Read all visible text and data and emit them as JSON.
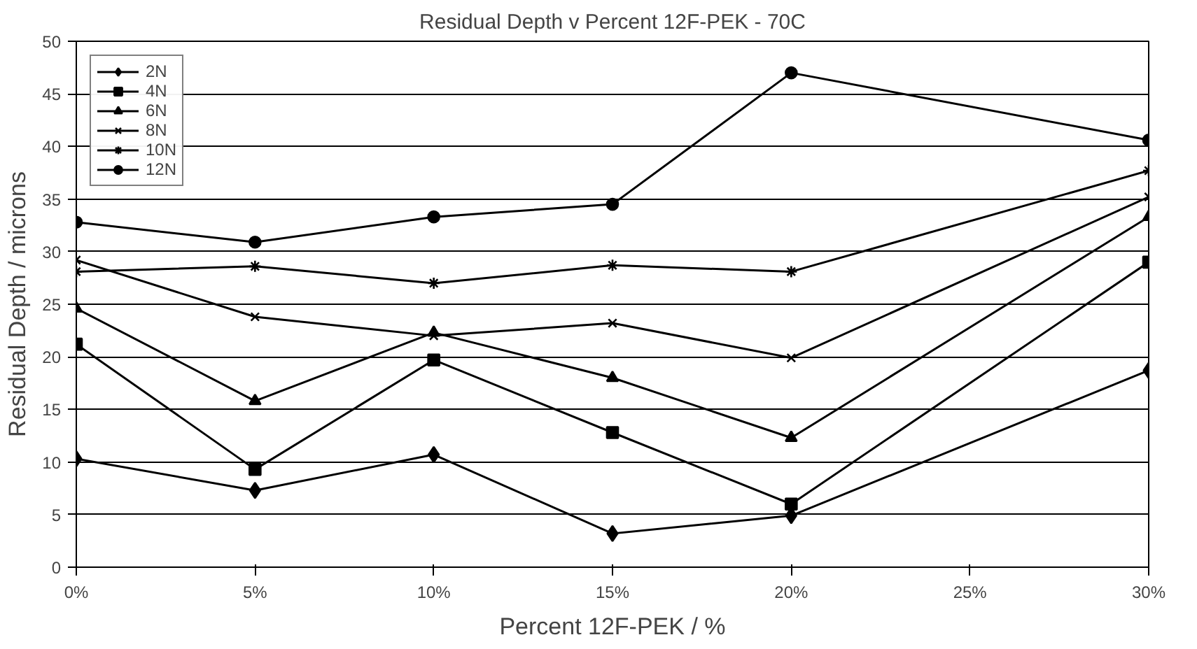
{
  "chart_data": {
    "type": "line",
    "title": "Residual Depth v Percent 12F-PEK - 70C",
    "xlabel": "Percent 12F-PEK / %",
    "ylabel": "Residual Depth / microns",
    "x": [
      0,
      5,
      10,
      15,
      20,
      30
    ],
    "xlim": [
      0,
      30
    ],
    "xticks": [
      {
        "value": 0,
        "label": "0%"
      },
      {
        "value": 5,
        "label": "5%"
      },
      {
        "value": 10,
        "label": "10%"
      },
      {
        "value": 15,
        "label": "15%"
      },
      {
        "value": 20,
        "label": "20%"
      },
      {
        "value": 25,
        "label": "25%"
      },
      {
        "value": 30,
        "label": "30%"
      }
    ],
    "ylim": [
      0,
      50
    ],
    "yticks": [
      0,
      5,
      10,
      15,
      20,
      25,
      30,
      35,
      40,
      45,
      50
    ],
    "grid": "y",
    "legend": "top left",
    "line_style": "solid",
    "series": [
      {
        "name": "2N",
        "color": "#000000",
        "marker": "diamond",
        "values": [
          10.3,
          7.3,
          10.7,
          3.2,
          4.9,
          18.7
        ]
      },
      {
        "name": "4N",
        "color": "#000000",
        "marker": "square",
        "values": [
          21.2,
          9.3,
          19.7,
          12.8,
          6.0,
          29.0
        ]
      },
      {
        "name": "6N",
        "color": "#000000",
        "marker": "triangle",
        "values": [
          24.6,
          15.8,
          22.3,
          18.0,
          12.3,
          33.3
        ]
      },
      {
        "name": "8N",
        "color": "#000000",
        "marker": "cross",
        "values": [
          29.2,
          23.8,
          22.0,
          23.2,
          19.9,
          35.2
        ]
      },
      {
        "name": "10N",
        "color": "#000000",
        "marker": "cross",
        "values": [
          28.1,
          28.6,
          27.0,
          28.7,
          28.1,
          37.7
        ]
      },
      {
        "name": "12N",
        "color": "#000000",
        "marker": "circle",
        "values": [
          32.8,
          30.9,
          33.3,
          34.5,
          47.0,
          40.6
        ]
      }
    ]
  }
}
